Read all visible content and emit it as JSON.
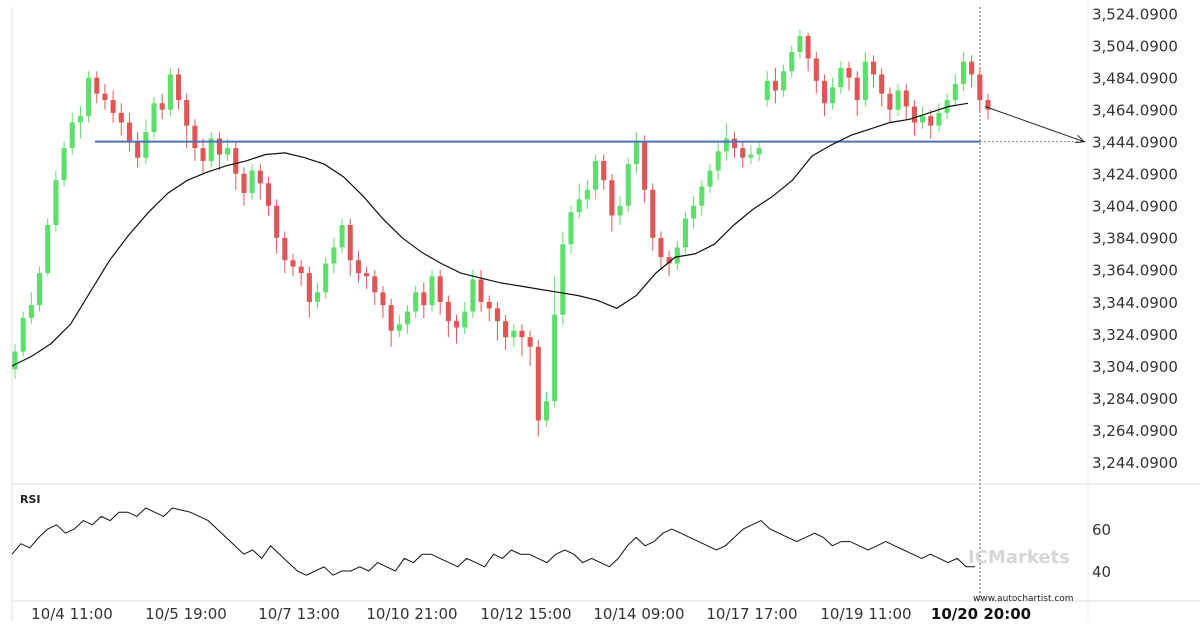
{
  "chart_data": {
    "type": "candlestick",
    "y_ticks": [
      "3,524.0900",
      "3,504.0900",
      "3,484.0900",
      "3,464.0900",
      "3,444.0900",
      "3,424.0900",
      "3,404.0900",
      "3,384.0900",
      "3,364.0900",
      "3,344.0900",
      "3,324.0900",
      "3,304.0900",
      "3,284.0900",
      "3,264.0900",
      "3,244.0900"
    ],
    "y_tick_values": [
      3524.09,
      3504.09,
      3484.09,
      3464.09,
      3444.09,
      3424.09,
      3404.09,
      3384.09,
      3364.09,
      3344.09,
      3324.09,
      3304.09,
      3284.09,
      3264.09,
      3244.09
    ],
    "ylim": [
      3234.09,
      3528.09
    ],
    "x_ticks": [
      "10/4 11:00",
      "10/5 19:00",
      "10/7 13:00",
      "10/10 21:00",
      "10/12 15:00",
      "10/14 09:00",
      "10/17 17:00",
      "10/19 11:00",
      "10/20 20:00"
    ],
    "x_tick_bold_index": 8,
    "resistance_level": 3444.09,
    "moving_average": [
      3304,
      3310,
      3318,
      3330,
      3350,
      3370,
      3386,
      3400,
      3412,
      3420,
      3425,
      3429,
      3432,
      3436,
      3437,
      3434,
      3430,
      3422,
      3410,
      3396,
      3384,
      3375,
      3368,
      3362,
      3359,
      3356,
      3354,
      3352,
      3350,
      3348,
      3345,
      3340,
      3348,
      3362,
      3372,
      3374,
      3380,
      3392,
      3402,
      3410,
      3420,
      3435,
      3442,
      3448,
      3452,
      3456,
      3458,
      3462,
      3466,
      3468
    ],
    "projection": {
      "from": 3466,
      "to": 3444
    },
    "candles": [
      [
        3302,
        3313,
        3296,
        3318
      ],
      [
        3313,
        3334,
        3310,
        3338
      ],
      [
        3334,
        3342,
        3330,
        3350
      ],
      [
        3342,
        3362,
        3338,
        3366
      ],
      [
        3362,
        3392,
        3360,
        3396
      ],
      [
        3392,
        3420,
        3388,
        3426
      ],
      [
        3420,
        3440,
        3416,
        3444
      ],
      [
        3440,
        3456,
        3436,
        3462
      ],
      [
        3456,
        3460,
        3446,
        3466
      ],
      [
        3460,
        3484,
        3456,
        3488
      ],
      [
        3484,
        3474,
        3468,
        3488
      ],
      [
        3474,
        3470,
        3464,
        3480
      ],
      [
        3470,
        3462,
        3456,
        3476
      ],
      [
        3462,
        3456,
        3448,
        3468
      ],
      [
        3456,
        3444,
        3438,
        3462
      ],
      [
        3444,
        3434,
        3428,
        3450
      ],
      [
        3434,
        3450,
        3430,
        3458
      ],
      [
        3450,
        3468,
        3446,
        3472
      ],
      [
        3468,
        3464,
        3458,
        3474
      ],
      [
        3464,
        3486,
        3460,
        3490
      ],
      [
        3486,
        3470,
        3464,
        3490
      ],
      [
        3470,
        3454,
        3440,
        3474
      ],
      [
        3454,
        3440,
        3432,
        3458
      ],
      [
        3440,
        3432,
        3424,
        3446
      ],
      [
        3432,
        3446,
        3428,
        3450
      ],
      [
        3446,
        3436,
        3426,
        3450
      ],
      [
        3436,
        3440,
        3432,
        3446
      ],
      [
        3440,
        3424,
        3414,
        3444
      ],
      [
        3424,
        3412,
        3404,
        3428
      ],
      [
        3412,
        3426,
        3408,
        3430
      ],
      [
        3426,
        3418,
        3408,
        3430
      ],
      [
        3418,
        3404,
        3398,
        3422
      ],
      [
        3404,
        3384,
        3374,
        3408
      ],
      [
        3384,
        3370,
        3362,
        3388
      ],
      [
        3370,
        3366,
        3360,
        3374
      ],
      [
        3366,
        3362,
        3354,
        3370
      ],
      [
        3362,
        3344,
        3334,
        3366
      ],
      [
        3344,
        3350,
        3340,
        3356
      ],
      [
        3350,
        3368,
        3346,
        3372
      ],
      [
        3368,
        3378,
        3362,
        3384
      ],
      [
        3378,
        3392,
        3374,
        3396
      ],
      [
        3392,
        3370,
        3360,
        3396
      ],
      [
        3370,
        3362,
        3356,
        3376
      ],
      [
        3362,
        3360,
        3352,
        3366
      ],
      [
        3360,
        3350,
        3342,
        3364
      ],
      [
        3350,
        3342,
        3334,
        3354
      ],
      [
        3342,
        3326,
        3316,
        3346
      ],
      [
        3326,
        3330,
        3322,
        3336
      ],
      [
        3330,
        3338,
        3324,
        3342
      ],
      [
        3338,
        3350,
        3334,
        3354
      ],
      [
        3350,
        3342,
        3334,
        3356
      ],
      [
        3342,
        3360,
        3338,
        3364
      ],
      [
        3360,
        3344,
        3336,
        3364
      ],
      [
        3344,
        3332,
        3322,
        3348
      ],
      [
        3332,
        3328,
        3318,
        3336
      ],
      [
        3328,
        3338,
        3324,
        3344
      ],
      [
        3338,
        3358,
        3334,
        3364
      ],
      [
        3358,
        3344,
        3338,
        3364
      ],
      [
        3344,
        3340,
        3332,
        3348
      ],
      [
        3340,
        3332,
        3320,
        3344
      ],
      [
        3332,
        3322,
        3314,
        3336
      ],
      [
        3322,
        3326,
        3316,
        3330
      ],
      [
        3326,
        3322,
        3310,
        3330
      ],
      [
        3322,
        3316,
        3304,
        3326
      ],
      [
        3316,
        3270,
        3260,
        3320
      ],
      [
        3270,
        3282,
        3266,
        3288
      ],
      [
        3282,
        3336,
        3278,
        3360
      ],
      [
        3336,
        3380,
        3330,
        3388
      ],
      [
        3380,
        3400,
        3374,
        3404
      ],
      [
        3400,
        3408,
        3396,
        3418
      ],
      [
        3408,
        3414,
        3402,
        3420
      ],
      [
        3414,
        3432,
        3408,
        3436
      ],
      [
        3432,
        3420,
        3414,
        3436
      ],
      [
        3420,
        3398,
        3388,
        3424
      ],
      [
        3398,
        3404,
        3392,
        3410
      ],
      [
        3404,
        3430,
        3400,
        3434
      ],
      [
        3430,
        3444,
        3424,
        3450
      ],
      [
        3444,
        3414,
        3406,
        3448
      ],
      [
        3414,
        3384,
        3376,
        3418
      ],
      [
        3384,
        3372,
        3364,
        3388
      ],
      [
        3372,
        3368,
        3360,
        3376
      ],
      [
        3368,
        3378,
        3364,
        3382
      ],
      [
        3378,
        3396,
        3374,
        3400
      ],
      [
        3396,
        3404,
        3390,
        3410
      ],
      [
        3404,
        3416,
        3398,
        3420
      ],
      [
        3416,
        3426,
        3412,
        3430
      ],
      [
        3426,
        3438,
        3420,
        3444
      ],
      [
        3438,
        3446,
        3432,
        3456
      ],
      [
        3446,
        3440,
        3434,
        3450
      ],
      [
        3440,
        3434,
        3428,
        3444
      ],
      [
        3434,
        3436,
        3430,
        3442
      ],
      [
        3436,
        3440,
        3432,
        3444
      ]
    ],
    "candles_part2": [
      [
        3470,
        3482,
        3466,
        3488
      ],
      [
        3482,
        3476,
        3468,
        3490
      ],
      [
        3476,
        3488,
        3472,
        3492
      ],
      [
        3488,
        3500,
        3484,
        3504
      ],
      [
        3500,
        3510,
        3496,
        3514
      ],
      [
        3510,
        3496,
        3488,
        3512
      ],
      [
        3496,
        3482,
        3474,
        3500
      ],
      [
        3482,
        3468,
        3460,
        3486
      ],
      [
        3468,
        3478,
        3464,
        3484
      ],
      [
        3478,
        3490,
        3474,
        3494
      ],
      [
        3490,
        3484,
        3476,
        3494
      ],
      [
        3484,
        3470,
        3460,
        3488
      ],
      [
        3470,
        3494,
        3466,
        3500
      ],
      [
        3494,
        3486,
        3478,
        3498
      ],
      [
        3486,
        3474,
        3466,
        3490
      ],
      [
        3474,
        3464,
        3456,
        3478
      ],
      [
        3464,
        3476,
        3460,
        3480
      ],
      [
        3476,
        3466,
        3458,
        3480
      ],
      [
        3466,
        3456,
        3448,
        3470
      ],
      [
        3456,
        3460,
        3452,
        3466
      ],
      [
        3460,
        3454,
        3446,
        3464
      ],
      [
        3454,
        3462,
        3450,
        3468
      ],
      [
        3462,
        3470,
        3458,
        3474
      ],
      [
        3470,
        3480,
        3466,
        3486
      ],
      [
        3480,
        3494,
        3476,
        3500
      ],
      [
        3494,
        3486,
        3478,
        3498
      ],
      [
        3486,
        3470,
        3462,
        3490
      ],
      [
        3470,
        3464,
        3458,
        3474
      ]
    ],
    "rsi": [
      48,
      53,
      51,
      56,
      60,
      62,
      58,
      60,
      64,
      62,
      66,
      64,
      68,
      68,
      66,
      70,
      68,
      66,
      70,
      69,
      68,
      66,
      64,
      60,
      56,
      52,
      48,
      50,
      46,
      52,
      48,
      44,
      40,
      38,
      40,
      42,
      38,
      40,
      40,
      42,
      40,
      44,
      42,
      40,
      46,
      44,
      48,
      48,
      46,
      44,
      42,
      46,
      44,
      42,
      48,
      46,
      50,
      48,
      48,
      46,
      44,
      48,
      50,
      48,
      44,
      46,
      44,
      42,
      46,
      52,
      56,
      52,
      54,
      58,
      60,
      58,
      56,
      54,
      52,
      50,
      52,
      56,
      60,
      62,
      64,
      60,
      58,
      56,
      54,
      56,
      58,
      56,
      52,
      54,
      54,
      52,
      50,
      52,
      54,
      52,
      50,
      48,
      46,
      48,
      46,
      44,
      46,
      42,
      42
    ],
    "rsi_label": "RSI",
    "rsi_ticks": [
      "60",
      "40"
    ],
    "rsi_tick_values": [
      60,
      40
    ],
    "colors": {
      "up": "#5ce06b",
      "down": "#e05656",
      "level": "#4d73b8",
      "ma": "#111111",
      "axis": "#dddddd"
    }
  },
  "watermark": "ICMarkets",
  "credit": "www.autochartist.com"
}
